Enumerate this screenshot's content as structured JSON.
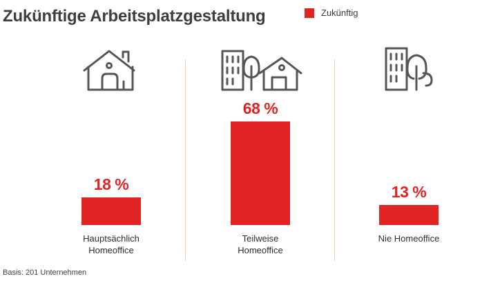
{
  "chart_data": {
    "type": "bar",
    "title": "Zukünftige Arbeitsplatzgestaltung",
    "categories": [
      [
        "Hauptsächlich",
        "Homeoffice"
      ],
      [
        "Teilweise",
        "Homeoffice"
      ],
      [
        "Nie Homeoffice"
      ]
    ],
    "series": [
      {
        "name": "Zukünftig",
        "values": [
          18,
          68,
          13
        ]
      }
    ],
    "value_labels": [
      "18 %",
      "68 %",
      "13 %"
    ],
    "unit": "%",
    "ylim": [
      0,
      100
    ],
    "grid": false,
    "legend_position": "top-right",
    "colors": {
      "bar": "#e02424",
      "text": "#3c3c3c",
      "divider": "#f2c9a8",
      "icon": "#555555"
    }
  },
  "icons": [
    "house-icon",
    "office-and-house-icon",
    "office-building-icon"
  ],
  "footnote": "Basis: 201 Unternehmen"
}
